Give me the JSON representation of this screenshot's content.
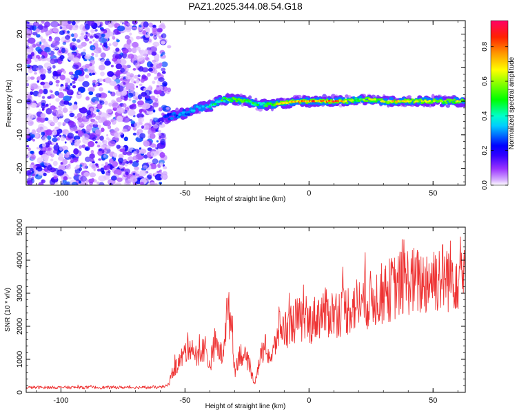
{
  "figure_title": "PAZ1.2025.344.08.54.G18",
  "chart_data": [
    {
      "type": "heatmap",
      "title": "PAZ1.2025.344.08.54.G18",
      "xlabel": "Height of straight line (km)",
      "ylabel": "Frequency (Hz)",
      "xlim": [
        -114,
        63
      ],
      "ylim": [
        -25,
        24
      ],
      "xticks": [
        -100,
        -50,
        0,
        50
      ],
      "yticks": [
        -20,
        -10,
        0,
        10,
        20
      ],
      "xtick_labels": [
        "-100",
        "-50",
        "0",
        "50"
      ],
      "ytick_labels": [
        "-20",
        "-10",
        "0",
        "10",
        "20"
      ],
      "colorbar": {
        "label": "Normalized spectral amplitude",
        "range": [
          0,
          0.95
        ],
        "ticks": [
          0,
          0.2,
          0.4,
          0.6,
          0.8
        ],
        "tick_labels": [
          "0.0",
          "0.2",
          "0.4",
          "0.6",
          "0.8"
        ],
        "colormap": [
          "#ffffff",
          "#cc88ff",
          "#8000ff",
          "#0000ff",
          "#00ffff",
          "#00ff00",
          "#ffff00",
          "#ff8000",
          "#ff0000",
          "#ff0066"
        ]
      },
      "noise_region_x": [
        -114,
        -58
      ],
      "signal_ridge": {
        "x": [
          -58,
          -55,
          -50,
          -45,
          -40,
          -35,
          -30,
          -25,
          -20,
          -15,
          -10,
          -5,
          0,
          5,
          10,
          15,
          20,
          25,
          30,
          35,
          40,
          45,
          50,
          55,
          60,
          63
        ],
        "frequency": [
          -5,
          -4.5,
          -3.5,
          -2,
          -1.5,
          0.5,
          0.5,
          0,
          -1,
          -1,
          -0.5,
          0,
          0,
          0,
          0,
          0,
          0.5,
          0.5,
          0,
          0,
          0,
          0,
          0,
          0,
          0,
          0
        ],
        "amplitude": [
          0.25,
          0.3,
          0.32,
          0.35,
          0.4,
          0.5,
          0.6,
          0.55,
          0.45,
          0.55,
          0.8,
          0.8,
          0.85,
          0.8,
          0.9,
          0.6,
          0.55,
          0.6,
          0.65,
          0.7,
          0.65,
          0.65,
          0.6,
          0.6,
          0.6,
          0.55
        ]
      }
    },
    {
      "type": "line",
      "xlabel": "Height of straight line (km)",
      "ylabel": "SNR (10 * v/v)",
      "xlim": [
        -114,
        63
      ],
      "ylim": [
        0,
        5000
      ],
      "xticks": [
        -100,
        -50,
        0,
        50
      ],
      "yticks": [
        0,
        1000,
        2000,
        3000,
        4000,
        5000
      ],
      "xtick_labels": [
        "-100",
        "-50",
        "0",
        "50"
      ],
      "ytick_labels": [
        "0",
        "1000",
        "2000",
        "3000",
        "4000",
        "5000"
      ],
      "line_color": "#ee3333",
      "series": [
        {
          "name": "SNR",
          "x": [
            -114,
            -100,
            -80,
            -60,
            -57,
            -55,
            -50,
            -48,
            -45,
            -42,
            -40,
            -38,
            -35,
            -33,
            -31,
            -30,
            -28,
            -25,
            -22,
            -20,
            -18,
            -15,
            -12,
            -10,
            -5,
            0,
            5,
            10,
            15,
            20,
            25,
            30,
            35,
            40,
            45,
            50,
            55,
            60,
            63
          ],
          "y": [
            150,
            150,
            150,
            150,
            200,
            600,
            1200,
            1500,
            1000,
            1400,
            800,
            1500,
            1100,
            2400,
            2200,
            600,
            1200,
            1000,
            300,
            900,
            1400,
            1000,
            2000,
            1900,
            2200,
            2100,
            2400,
            2400,
            2500,
            2700,
            2800,
            3000,
            3200,
            3400,
            3300,
            3500,
            3500,
            3600,
            3700
          ]
        }
      ]
    }
  ]
}
